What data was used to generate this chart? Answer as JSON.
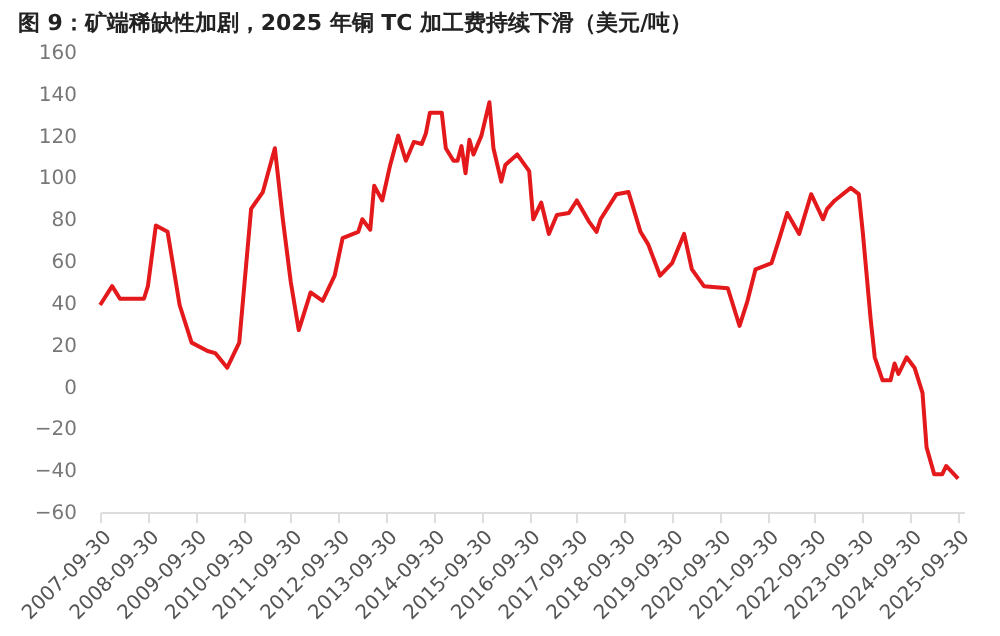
{
  "chart_data": {
    "type": "line",
    "title": "图 9：矿端稀缺性加剧，2025 年铜 TC 加工费持续下滑（美元/吨）",
    "x": [
      "2007-10",
      "2008-01",
      "2008-03",
      "2008-09",
      "2008-10",
      "2008-12",
      "2009-03",
      "2009-06",
      "2009-09",
      "2010-01",
      "2010-03",
      "2010-06",
      "2010-09",
      "2010-12",
      "2011-03",
      "2011-06",
      "2011-08",
      "2011-10",
      "2011-12",
      "2012-03",
      "2012-06",
      "2012-09",
      "2012-11",
      "2013-03",
      "2013-04",
      "2013-06",
      "2013-07",
      "2013-09",
      "2013-11",
      "2014-01",
      "2014-03",
      "2014-05",
      "2014-07",
      "2014-08",
      "2014-09",
      "2014-12",
      "2015-01",
      "2015-03",
      "2015-04",
      "2015-05",
      "2015-06",
      "2015-07",
      "2015-08",
      "2015-10",
      "2015-12",
      "2016-01",
      "2016-03",
      "2016-04",
      "2016-07",
      "2016-10",
      "2016-11",
      "2017-01",
      "2017-03",
      "2017-05",
      "2017-08",
      "2017-10",
      "2018-01",
      "2018-03",
      "2018-04",
      "2018-08",
      "2018-11",
      "2019-02",
      "2019-04",
      "2019-07",
      "2019-10",
      "2020-01",
      "2020-03",
      "2020-06",
      "2020-12",
      "2021-03",
      "2021-05",
      "2021-07",
      "2021-11",
      "2022-01",
      "2022-03",
      "2022-06",
      "2022-09",
      "2022-12",
      "2023-01",
      "2023-03",
      "2023-07",
      "2023-09",
      "2023-10",
      "2023-12",
      "2024-01",
      "2024-03",
      "2024-05",
      "2024-06",
      "2024-07",
      "2024-09",
      "2024-11",
      "2025-01",
      "2025-02",
      "2025-04",
      "2025-06",
      "2025-07",
      "2025-08",
      "2025-10"
    ],
    "series": [
      {
        "color": "#e3191c",
        "values": [
          39,
          48,
          42,
          42,
          48,
          77,
          74,
          39,
          21,
          17,
          16,
          9,
          21,
          85,
          93,
          114,
          80,
          50,
          27,
          45,
          41,
          53,
          71,
          74,
          80,
          75,
          96,
          89,
          106,
          120,
          108,
          117,
          116,
          121,
          131,
          131,
          114,
          108,
          108,
          115,
          102,
          118,
          111,
          120,
          136,
          114,
          98,
          106,
          111,
          103,
          80,
          88,
          73,
          82,
          83,
          89,
          79,
          74,
          80,
          92,
          93,
          74,
          68,
          53,
          59,
          73,
          56,
          48,
          47,
          29,
          41,
          56,
          59,
          71,
          83,
          73,
          92,
          80,
          85,
          89,
          95,
          92,
          74,
          32,
          14,
          3,
          3,
          11,
          6,
          14,
          9,
          -3,
          -29,
          -42,
          -42,
          -38,
          -40,
          -44
        ]
      }
    ],
    "xlim": [
      "2007-09-30",
      "2025-11-15"
    ],
    "xticks": [
      "2007-09-30",
      "2008-09-30",
      "2009-09-30",
      "2010-09-30",
      "2011-09-30",
      "2012-09-30",
      "2013-09-30",
      "2014-09-30",
      "2015-09-30",
      "2016-09-30",
      "2017-09-30",
      "2018-09-30",
      "2019-09-30",
      "2020-09-30",
      "2021-09-30",
      "2022-09-30",
      "2023-09-30",
      "2024-09-30",
      "2025-09-30"
    ],
    "ylim": [
      -60,
      160
    ],
    "yticks": [
      -60,
      -40,
      -20,
      0,
      20,
      40,
      60,
      80,
      100,
      120,
      140,
      160
    ],
    "grid": false,
    "marker": "none",
    "line_style": "solid"
  }
}
